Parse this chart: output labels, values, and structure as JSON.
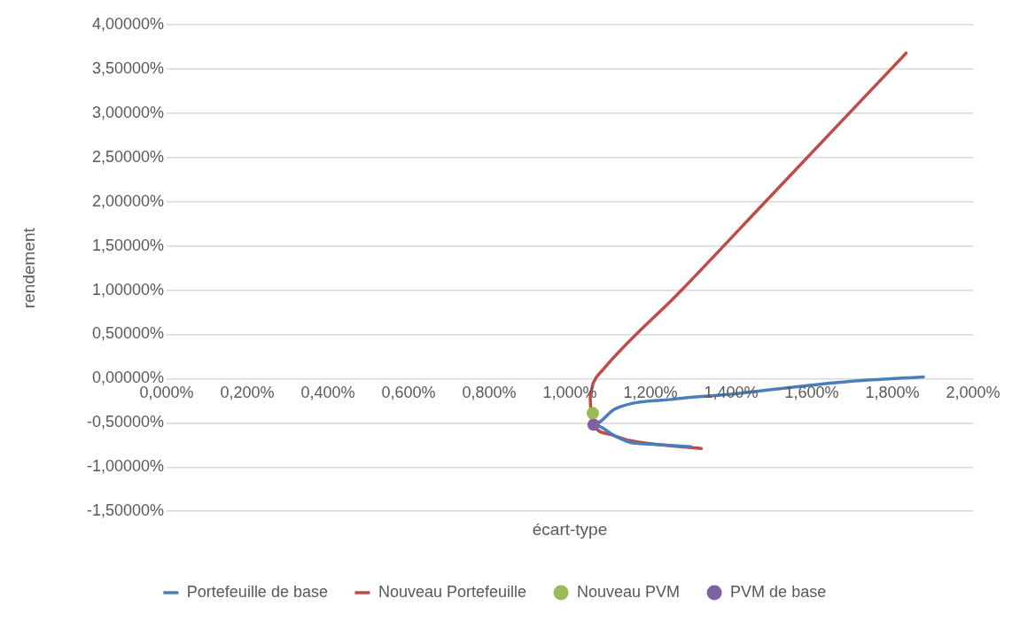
{
  "chart_data": {
    "type": "line",
    "xlabel": "écart-type",
    "ylabel": "rendement",
    "xlim": [
      0,
      2
    ],
    "xticks": [
      {
        "value": 0,
        "label": "0,000%"
      },
      {
        "value": 0.2,
        "label": "0,200%"
      },
      {
        "value": 0.4,
        "label": "0,400%"
      },
      {
        "value": 0.6,
        "label": "0,600%"
      },
      {
        "value": 0.8,
        "label": "0,800%"
      },
      {
        "value": 1,
        "label": "1,000%"
      },
      {
        "value": 1.2,
        "label": "1,200%"
      },
      {
        "value": 1.4,
        "label": "1,400%"
      },
      {
        "value": 1.6,
        "label": "1,600%"
      },
      {
        "value": 1.8,
        "label": "1,800%"
      },
      {
        "value": 2,
        "label": "2,000%"
      }
    ],
    "ylim": [
      -1.5,
      4
    ],
    "yticks": [
      {
        "value": -1.5,
        "label": "-1,50000%"
      },
      {
        "value": -1,
        "label": "-1,00000%"
      },
      {
        "value": -0.5,
        "label": "-0,50000%"
      },
      {
        "value": 0,
        "label": "0,00000%"
      },
      {
        "value": 0.5,
        "label": "0,50000%"
      },
      {
        "value": 1,
        "label": "1,00000%"
      },
      {
        "value": 1.5,
        "label": "1,50000%"
      },
      {
        "value": 2,
        "label": "2,00000%"
      },
      {
        "value": 2.5,
        "label": "2,50000%"
      },
      {
        "value": 3,
        "label": "3,00000%"
      },
      {
        "value": 3.5,
        "label": "3,50000%"
      },
      {
        "value": 4,
        "label": "4,00000%"
      }
    ],
    "grid": "y",
    "legend": "bottom",
    "series": [
      {
        "name": "Portefeuille de base",
        "color": "#4a7ebb",
        "x": [
          1.3,
          1.2,
          1.149,
          1.113,
          1.059,
          1.113,
          1.261,
          1.411,
          1.545,
          1.695,
          1.877
        ],
        "values": [
          -0.77,
          -0.74,
          -0.72,
          -0.65,
          -0.52,
          -0.34,
          -0.23,
          -0.17,
          -0.1,
          -0.03,
          0.02
        ]
      },
      {
        "name": "Nouveau Portefeuille",
        "color": "#be4b48",
        "x": [
          1.834,
          1.485,
          1.277,
          1.082,
          1.058,
          1.05,
          1.052,
          1.059,
          1.1,
          1.149,
          1.25,
          1.326
        ],
        "values": [
          3.68,
          2.0,
          1.0,
          0.1,
          -0.05,
          -0.18,
          -0.35,
          -0.52,
          -0.63,
          -0.7,
          -0.76,
          -0.79
        ]
      },
      {
        "name": "Nouveau PVM",
        "type": "scatter",
        "color": "#9bbb59",
        "x": [
          1.057
        ],
        "values": [
          -0.39
        ]
      },
      {
        "name": "PVM de base",
        "type": "scatter",
        "color": "#7f60a0",
        "x": [
          1.059
        ],
        "values": [
          -0.52
        ]
      }
    ]
  }
}
